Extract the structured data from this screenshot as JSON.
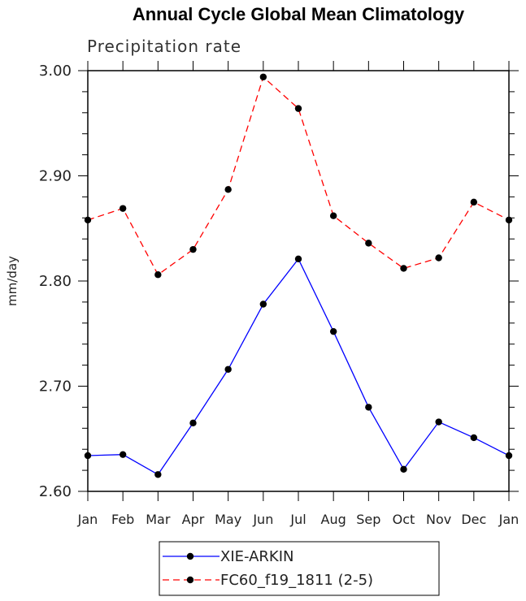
{
  "chart_data": {
    "type": "line",
    "title": "Annual Cycle Global Mean Climatology",
    "subtitle": "Precipitation rate",
    "xlabel": "",
    "ylabel": "mm/day",
    "categories": [
      "Jan",
      "Feb",
      "Mar",
      "Apr",
      "May",
      "Jun",
      "Jul",
      "Aug",
      "Sep",
      "Oct",
      "Nov",
      "Dec",
      "Jan"
    ],
    "ylim": [
      2.6,
      3.0
    ],
    "yticks": [
      "2.60",
      "2.70",
      "2.80",
      "2.90",
      "3.00"
    ],
    "grid": false,
    "legend_position": "bottom",
    "series": [
      {
        "name": "XIE-ARKIN",
        "color": "#0000ff",
        "line_style": "solid",
        "values": [
          2.634,
          2.635,
          2.616,
          2.665,
          2.716,
          2.778,
          2.821,
          2.752,
          2.68,
          2.621,
          2.666,
          2.651,
          2.634
        ]
      },
      {
        "name": "FC60_f19_1811 (2-5)",
        "color": "#ff0000",
        "line_style": "dashed",
        "values": [
          2.858,
          2.869,
          2.806,
          2.83,
          2.887,
          2.994,
          2.964,
          2.862,
          2.836,
          2.812,
          2.822,
          2.875,
          2.858
        ]
      }
    ]
  }
}
